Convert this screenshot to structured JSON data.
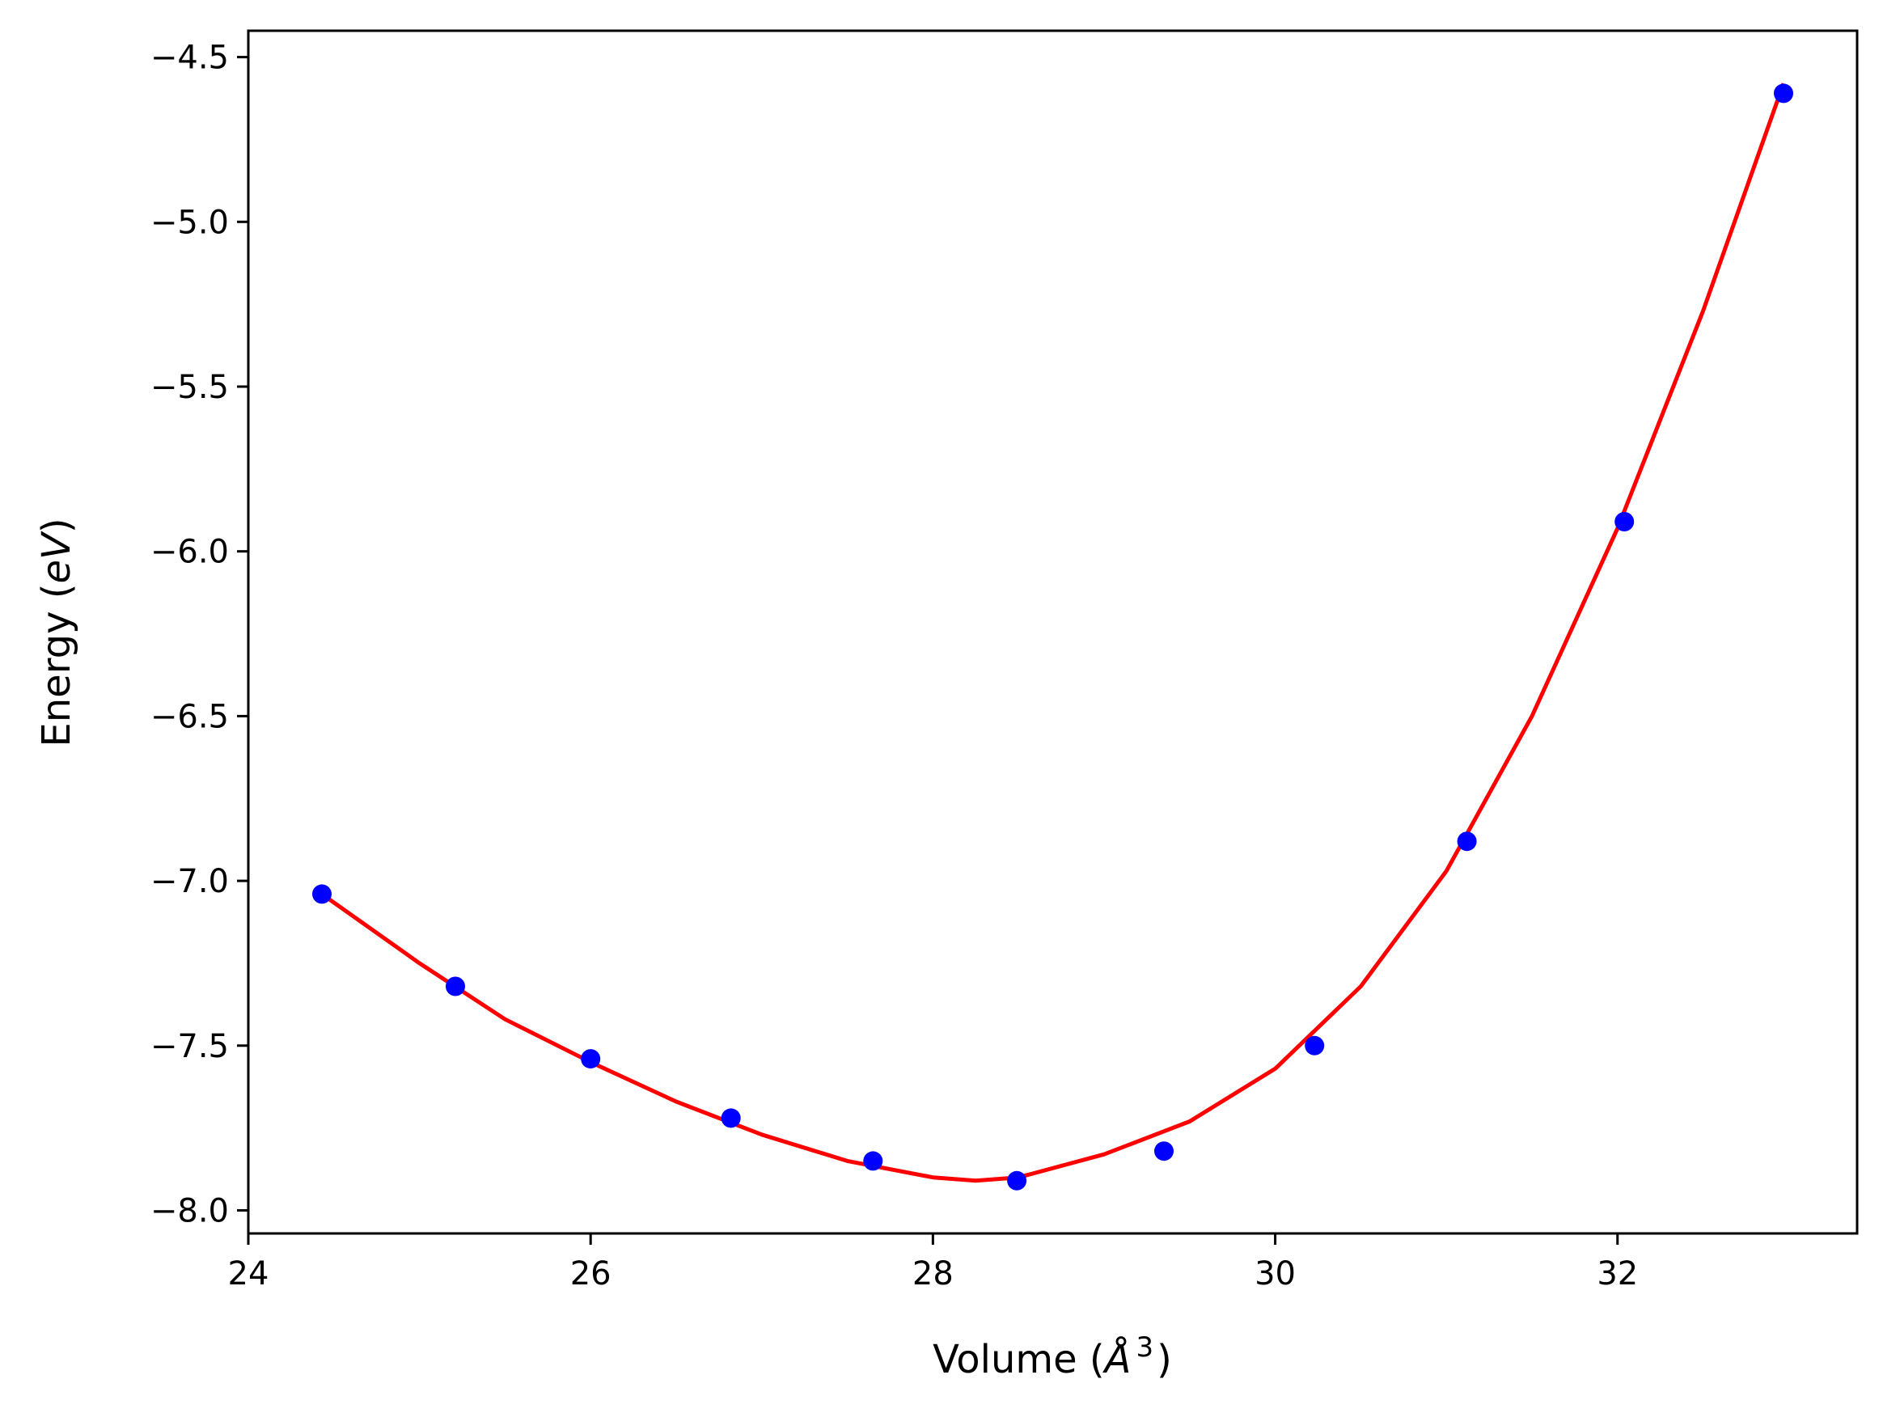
{
  "chart_data": {
    "type": "scatter",
    "title": "",
    "xlabel_prefix": "Volume (",
    "xlabel_math": "Å",
    "xlabel_sup": "3",
    "xlabel_suffix": ")",
    "ylabel_prefix": "Energy (",
    "ylabel_math": "eV",
    "ylabel_suffix": ")",
    "xlim": [
      24.0,
      33.4
    ],
    "ylim": [
      -8.07,
      -4.42
    ],
    "xticks": [
      24,
      26,
      28,
      30,
      32
    ],
    "xtick_labels": [
      "24",
      "26",
      "28",
      "30",
      "32"
    ],
    "yticks": [
      -4.5,
      -5.0,
      -5.5,
      -6.0,
      -6.5,
      -7.0,
      -7.5,
      -8.0
    ],
    "ytick_labels": [
      "−4.5",
      "−5.0",
      "−5.5",
      "−6.0",
      "−6.5",
      "−7.0",
      "−7.5",
      "−8.0"
    ],
    "grid": false,
    "legend": "none",
    "series": [
      {
        "kind": "markers",
        "color": "#0000ff",
        "x": [
          24.43,
          25.21,
          26.0,
          26.82,
          27.65,
          28.49,
          29.35,
          30.23,
          31.12,
          32.04,
          32.97
        ],
        "y": [
          -7.04,
          -7.32,
          -7.54,
          -7.72,
          -7.85,
          -7.91,
          -7.82,
          -7.5,
          -6.88,
          -5.91,
          -4.61
        ]
      },
      {
        "kind": "line",
        "color": "#ff0000",
        "x": [
          24.43,
          25.0,
          25.5,
          26.0,
          26.5,
          27.0,
          27.5,
          28.0,
          28.25,
          28.5,
          29.0,
          29.5,
          30.0,
          30.5,
          31.0,
          31.5,
          32.0,
          32.5,
          32.97
        ],
        "y": [
          -7.04,
          -7.25,
          -7.42,
          -7.55,
          -7.67,
          -7.77,
          -7.85,
          -7.9,
          -7.91,
          -7.9,
          -7.83,
          -7.73,
          -7.57,
          -7.32,
          -6.97,
          -6.5,
          -5.93,
          -5.27,
          -4.58
        ]
      }
    ]
  }
}
